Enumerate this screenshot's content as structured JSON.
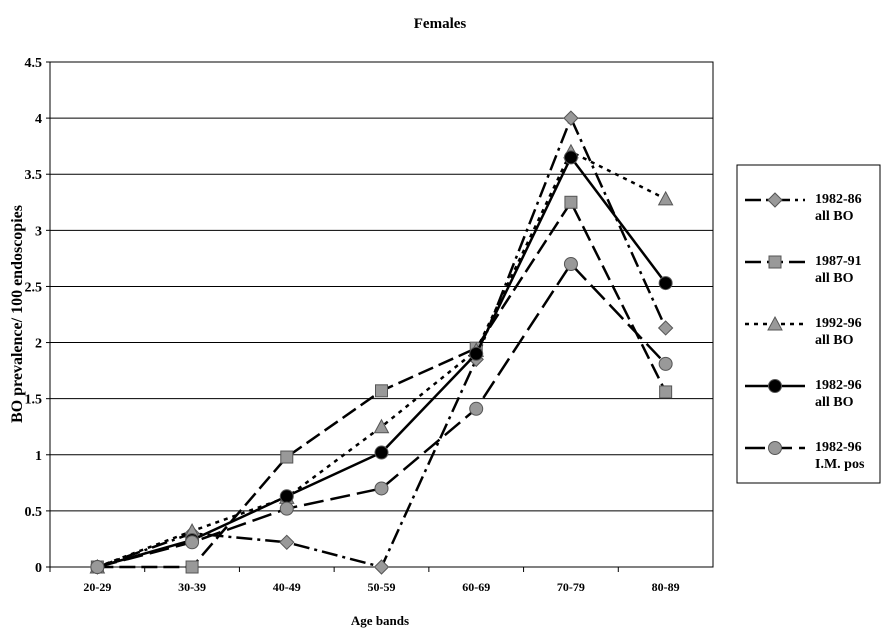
{
  "chart_data": {
    "type": "line",
    "title": "Females",
    "x_label": "Age bands",
    "y_label": "BO prevalence/ 100 endoscopies",
    "categories": [
      "20-29",
      "30-39",
      "40-49",
      "50-59",
      "60-69",
      "70-79",
      "80-89"
    ],
    "ylim": [
      0,
      4.5
    ],
    "yticks": [
      0,
      0.5,
      1,
      1.5,
      2,
      2.5,
      3,
      3.5,
      4,
      4.5
    ],
    "grid": true,
    "legend": "right",
    "series": [
      {
        "name": "1982-86\nall BO",
        "color": "#999999",
        "marker": "diamond",
        "dash": "16,5,3,5",
        "values": [
          0,
          0.3,
          0.22,
          0,
          1.85,
          4.0,
          2.13
        ]
      },
      {
        "name": "1987-91\nall BO",
        "color": "#999999",
        "marker": "square",
        "dash": "16,6",
        "values": [
          0,
          0,
          0.98,
          1.57,
          1.95,
          3.25,
          1.56
        ]
      },
      {
        "name": "1992-96\nall BO",
        "color": "#999999",
        "marker": "triangle",
        "dash": "4,5",
        "values": [
          0,
          0.32,
          0.62,
          1.25,
          1.93,
          3.7,
          3.28
        ]
      },
      {
        "name": "1982-96\nall BO",
        "color": "#000000",
        "marker": "circle",
        "dash": "none",
        "values": [
          0,
          0.24,
          0.63,
          1.02,
          1.9,
          3.65,
          2.53
        ]
      },
      {
        "name": "1982-96\nI.M. pos",
        "color": "#999999",
        "marker": "circle",
        "dash": "20,7",
        "values": [
          0,
          0.22,
          0.52,
          0.7,
          1.41,
          2.7,
          1.81
        ]
      }
    ]
  }
}
